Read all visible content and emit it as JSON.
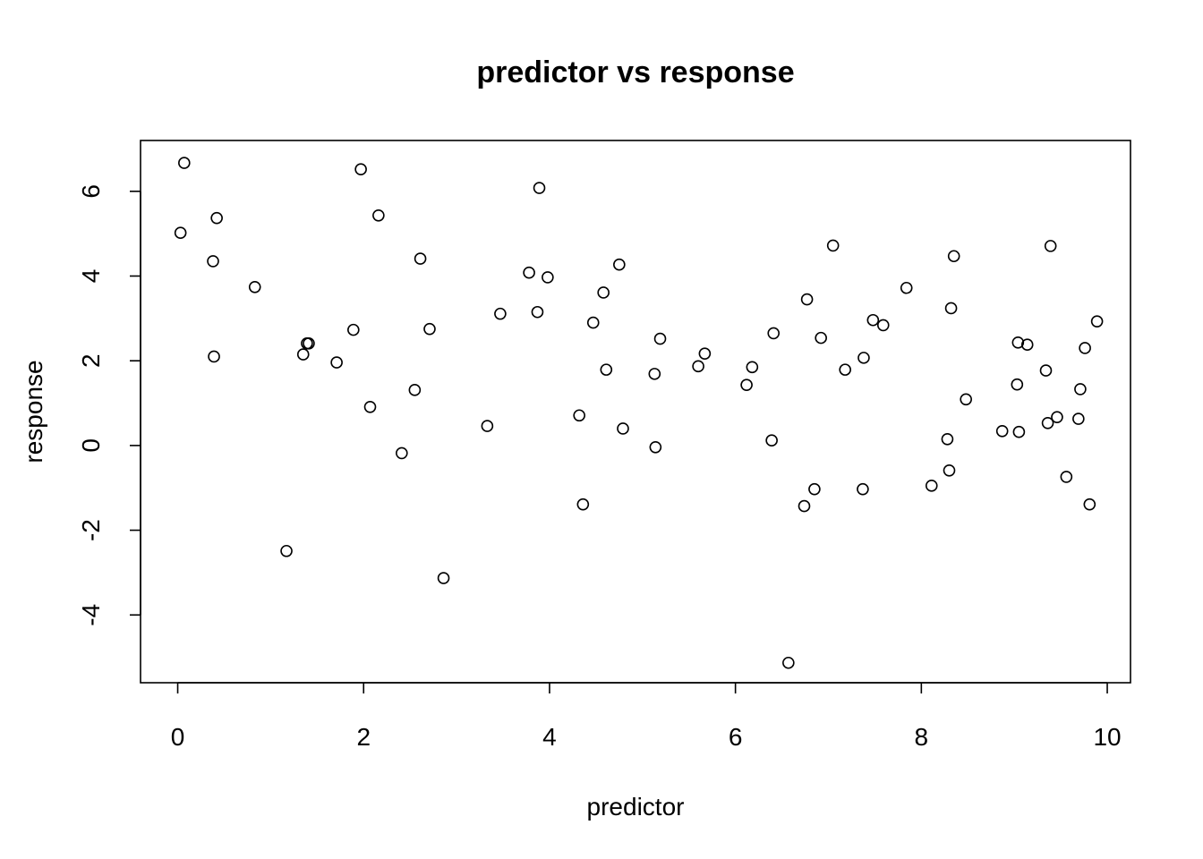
{
  "chart_data": {
    "type": "scatter",
    "title": "predictor vs response",
    "xlabel": "predictor",
    "ylabel": "response",
    "xlim": [
      -0.4,
      10.25
    ],
    "ylim": [
      -5.6,
      7.2
    ],
    "xticks": [
      0,
      2,
      4,
      6,
      8,
      10
    ],
    "yticks": [
      -4,
      -2,
      0,
      2,
      4,
      6
    ],
    "grid": false,
    "legend": "none",
    "point_style": "open-circle",
    "series": [
      {
        "points": [
          [
            0.03,
            5.02
          ],
          [
            0.07,
            6.67
          ],
          [
            0.38,
            4.35
          ],
          [
            0.39,
            2.1
          ],
          [
            0.42,
            5.37
          ],
          [
            0.83,
            3.74
          ],
          [
            1.17,
            -2.49
          ],
          [
            1.35,
            2.15
          ],
          [
            1.39,
            2.41
          ],
          [
            1.41,
            2.41
          ],
          [
            1.71,
            1.96
          ],
          [
            1.89,
            2.73
          ],
          [
            1.97,
            6.52
          ],
          [
            2.07,
            0.91
          ],
          [
            2.16,
            5.43
          ],
          [
            2.41,
            -0.18
          ],
          [
            2.55,
            1.31
          ],
          [
            2.61,
            4.41
          ],
          [
            2.71,
            2.75
          ],
          [
            2.86,
            -3.13
          ],
          [
            3.33,
            0.46
          ],
          [
            3.47,
            3.11
          ],
          [
            3.78,
            4.08
          ],
          [
            3.87,
            3.15
          ],
          [
            3.89,
            6.08
          ],
          [
            3.98,
            3.97
          ],
          [
            4.32,
            0.71
          ],
          [
            4.36,
            -1.39
          ],
          [
            4.47,
            2.9
          ],
          [
            4.58,
            3.61
          ],
          [
            4.61,
            1.79
          ],
          [
            4.75,
            4.27
          ],
          [
            4.79,
            0.4
          ],
          [
            5.13,
            1.69
          ],
          [
            5.14,
            -0.04
          ],
          [
            5.19,
            2.52
          ],
          [
            5.6,
            1.87
          ],
          [
            5.67,
            2.17
          ],
          [
            6.12,
            1.43
          ],
          [
            6.18,
            1.85
          ],
          [
            6.39,
            0.12
          ],
          [
            6.41,
            2.65
          ],
          [
            6.57,
            -5.13
          ],
          [
            6.74,
            -1.43
          ],
          [
            6.77,
            3.45
          ],
          [
            6.85,
            -1.03
          ],
          [
            6.92,
            2.54
          ],
          [
            7.05,
            4.72
          ],
          [
            7.18,
            1.79
          ],
          [
            7.37,
            -1.03
          ],
          [
            7.38,
            2.07
          ],
          [
            7.48,
            2.96
          ],
          [
            7.59,
            2.84
          ],
          [
            7.84,
            3.72
          ],
          [
            8.11,
            -0.95
          ],
          [
            8.28,
            0.15
          ],
          [
            8.3,
            -0.59
          ],
          [
            8.32,
            3.24
          ],
          [
            8.35,
            4.47
          ],
          [
            8.48,
            1.09
          ],
          [
            8.87,
            0.34
          ],
          [
            9.03,
            1.44
          ],
          [
            9.04,
            2.43
          ],
          [
            9.05,
            0.32
          ],
          [
            9.14,
            2.38
          ],
          [
            9.34,
            1.77
          ],
          [
            9.36,
            0.53
          ],
          [
            9.39,
            4.71
          ],
          [
            9.46,
            0.67
          ],
          [
            9.56,
            -0.74
          ],
          [
            9.69,
            0.63
          ],
          [
            9.71,
            1.33
          ],
          [
            9.76,
            2.3
          ],
          [
            9.81,
            -1.39
          ],
          [
            9.89,
            2.93
          ]
        ]
      }
    ]
  }
}
